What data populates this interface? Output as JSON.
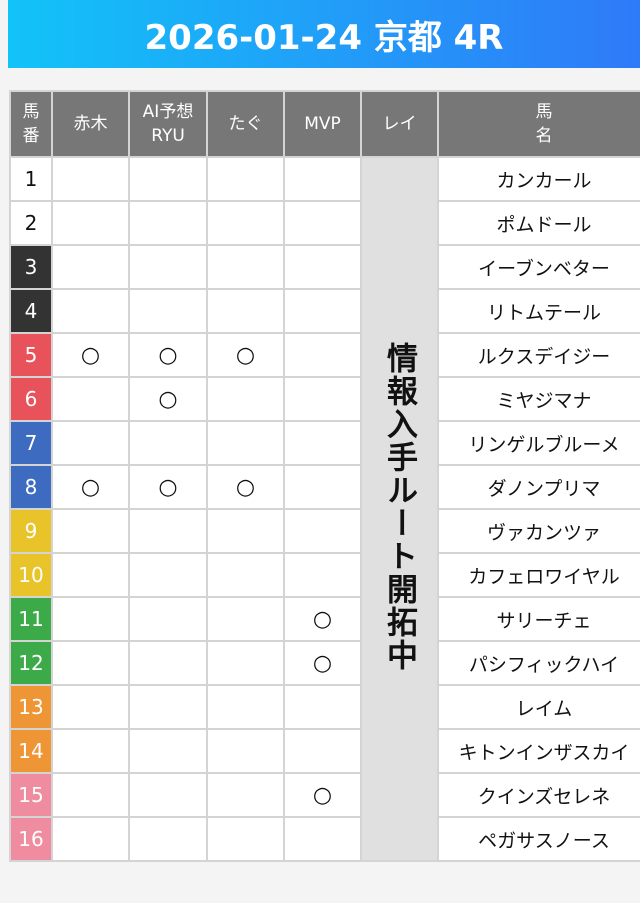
{
  "header": {
    "title": "2026-01-24 京都 4R"
  },
  "columns": {
    "num": "馬\n番",
    "akagi": "赤木",
    "ai": "AI予想\nRYU",
    "tagu": "たぐ",
    "mvp": "MVP",
    "rei": "レイ",
    "name": "馬\n名"
  },
  "rei_note": "情報入手ルート開拓中",
  "frame_colors": {
    "1": {
      "bg": "#ffffff",
      "fg": "#111111"
    },
    "2": {
      "bg": "#333333",
      "fg": "#ffffff"
    },
    "3": {
      "bg": "#e8525a",
      "fg": "#ffffff"
    },
    "4": {
      "bg": "#3d6bbf",
      "fg": "#ffffff"
    },
    "5": {
      "bg": "#e8c42a",
      "fg": "#ffffff"
    },
    "6": {
      "bg": "#3daa4a",
      "fg": "#ffffff"
    },
    "7": {
      "bg": "#ee9535",
      "fg": "#ffffff"
    },
    "8": {
      "bg": "#f08ca0",
      "fg": "#ffffff"
    }
  },
  "rows": [
    {
      "num": "1",
      "frame": 1,
      "akagi": "",
      "ai": "",
      "tagu": "",
      "mvp": "",
      "name": "カンカール"
    },
    {
      "num": "2",
      "frame": 1,
      "akagi": "",
      "ai": "",
      "tagu": "",
      "mvp": "",
      "name": "ポムドール"
    },
    {
      "num": "3",
      "frame": 2,
      "akagi": "",
      "ai": "",
      "tagu": "",
      "mvp": "",
      "name": "イーブンベター"
    },
    {
      "num": "4",
      "frame": 2,
      "akagi": "",
      "ai": "",
      "tagu": "",
      "mvp": "",
      "name": "リトムテール"
    },
    {
      "num": "5",
      "frame": 3,
      "akagi": "○",
      "ai": "○",
      "tagu": "○",
      "mvp": "",
      "name": "ルクスデイジー"
    },
    {
      "num": "6",
      "frame": 3,
      "akagi": "",
      "ai": "○",
      "tagu": "",
      "mvp": "",
      "name": "ミヤジマナ"
    },
    {
      "num": "7",
      "frame": 4,
      "akagi": "",
      "ai": "",
      "tagu": "",
      "mvp": "",
      "name": "リンゲルブルーメ"
    },
    {
      "num": "8",
      "frame": 4,
      "akagi": "○",
      "ai": "○",
      "tagu": "○",
      "mvp": "",
      "name": "ダノンプリマ"
    },
    {
      "num": "9",
      "frame": 5,
      "akagi": "",
      "ai": "",
      "tagu": "",
      "mvp": "",
      "name": "ヴァカンツァ"
    },
    {
      "num": "10",
      "frame": 5,
      "akagi": "",
      "ai": "",
      "tagu": "",
      "mvp": "",
      "name": "カフェロワイヤル"
    },
    {
      "num": "11",
      "frame": 6,
      "akagi": "",
      "ai": "",
      "tagu": "",
      "mvp": "○",
      "name": "サリーチェ"
    },
    {
      "num": "12",
      "frame": 6,
      "akagi": "",
      "ai": "",
      "tagu": "",
      "mvp": "○",
      "name": "パシフィックハイ"
    },
    {
      "num": "13",
      "frame": 7,
      "akagi": "",
      "ai": "",
      "tagu": "",
      "mvp": "",
      "name": "レイム"
    },
    {
      "num": "14",
      "frame": 7,
      "akagi": "",
      "ai": "",
      "tagu": "",
      "mvp": "",
      "name": "キトンインザスカイ"
    },
    {
      "num": "15",
      "frame": 8,
      "akagi": "",
      "ai": "",
      "tagu": "",
      "mvp": "○",
      "name": "クインズセレネ"
    },
    {
      "num": "16",
      "frame": 8,
      "akagi": "",
      "ai": "",
      "tagu": "",
      "mvp": "",
      "name": "ペガサスノース"
    }
  ]
}
